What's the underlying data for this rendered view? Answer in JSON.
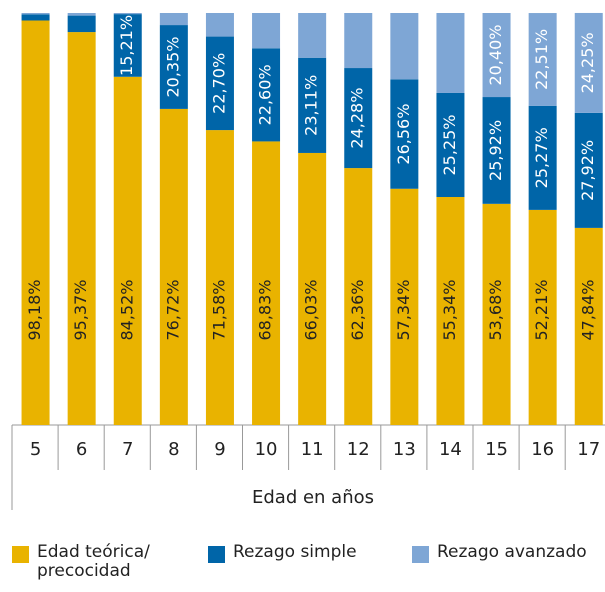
{
  "chart_data": {
    "type": "stacked_bar",
    "x_label": "Edad en años",
    "categories": [
      "5",
      "6",
      "7",
      "8",
      "9",
      "10",
      "11",
      "12",
      "13",
      "14",
      "15",
      "16",
      "17"
    ],
    "ylim": [
      0,
      100
    ],
    "series": [
      {
        "name": "Edad teórica/ precocidad",
        "color": "#e9b300",
        "values": [
          98.18,
          95.37,
          84.52,
          76.72,
          71.58,
          68.83,
          66.03,
          62.36,
          57.34,
          55.34,
          53.68,
          52.21,
          47.84
        ],
        "value_labels": [
          "98,18%",
          "95,37%",
          "84,52%",
          "76,72%",
          "71,58%",
          "68,83%",
          "66,03%",
          "62,36%",
          "57,34%",
          "55,34%",
          "53,68%",
          "52,21%",
          "47,84%"
        ]
      },
      {
        "name": "Rezago simple",
        "color": "#0065a8",
        "values": [
          1.5,
          4.0,
          15.21,
          20.35,
          22.7,
          22.6,
          23.11,
          24.28,
          26.56,
          25.25,
          25.92,
          25.27,
          27.92
        ],
        "value_labels": [
          null,
          null,
          "15,21%",
          "20,35%",
          "22,70%",
          "22,60%",
          "23,11%",
          "24,28%",
          "26,56%",
          "25,25%",
          "25,92%",
          "25,27%",
          "27,92%"
        ]
      },
      {
        "name": "Rezago avanzado",
        "color": "#7ea6d5",
        "values": [
          0.32,
          0.63,
          0.27,
          2.93,
          5.72,
          8.57,
          10.86,
          13.36,
          16.1,
          19.41,
          20.4,
          22.51,
          24.25
        ],
        "value_labels": [
          null,
          null,
          null,
          null,
          null,
          null,
          null,
          null,
          null,
          null,
          "20,40%",
          "22,51%",
          "24,25%"
        ]
      }
    ]
  }
}
